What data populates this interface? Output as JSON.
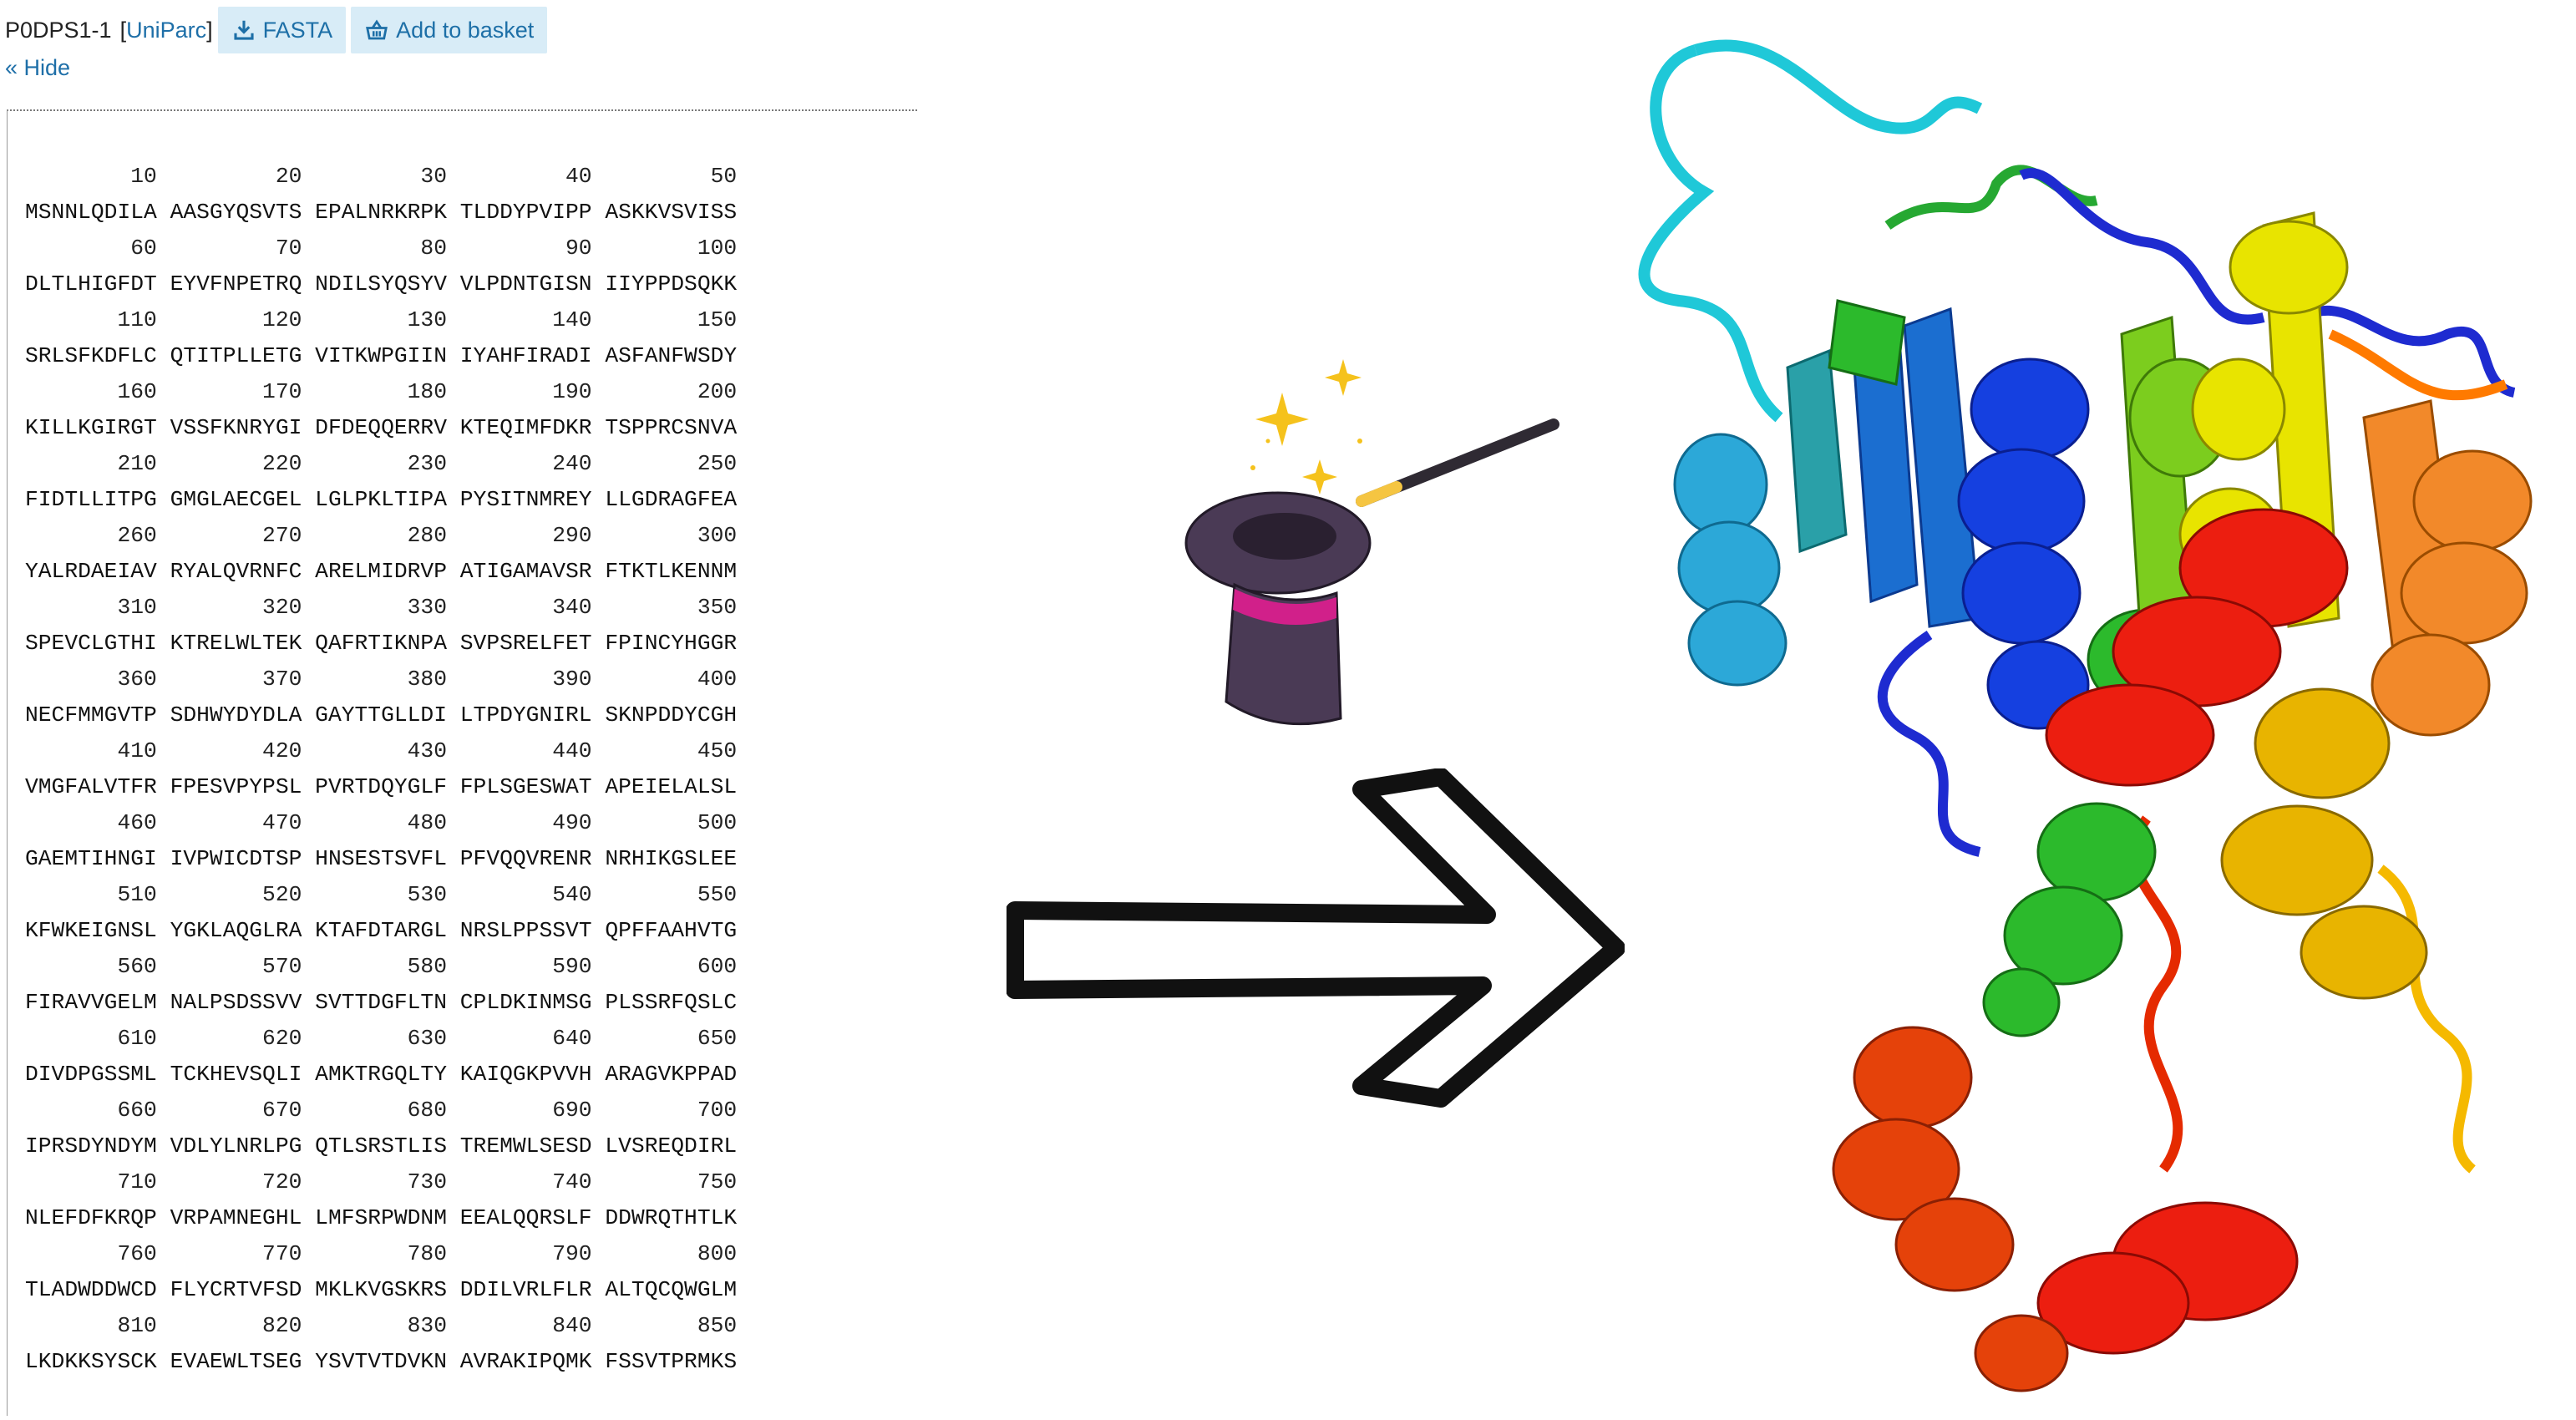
{
  "header": {
    "accession": "P0DPS1-1",
    "uniparc_label": "UniParc",
    "fasta_label": "FASTA",
    "basket_label": "Add to basket",
    "hide_label": "« Hide"
  },
  "sequence": {
    "rows": [
      {
        "nums": "        10         20         30         40         50",
        "res": "MSNNLQDILA AASGYQSVTS EPALNRKRPK TLDDYPVIPP ASKKVSVISS"
      },
      {
        "nums": "        60         70         80         90        100",
        "res": "DLTLHIGFDT EYVFNPETRQ NDILSYQSYV VLPDNTGISN IIYPPDSQKK"
      },
      {
        "nums": "       110        120        130        140        150",
        "res": "SRLSFKDFLC QTITPLLETG VITKWPGIIN IYAHFIRADI ASFANFWSDY"
      },
      {
        "nums": "       160        170        180        190        200",
        "res": "KILLKGIRGT VSSFKNRYGI DFDEQQERRV KTEQIMFDKR TSPPRCSNVA"
      },
      {
        "nums": "       210        220        230        240        250",
        "res": "FIDTLLITPG GMGLAECGEL LGLPKLTIPA PYSITNMREY LLGDRAGFEA"
      },
      {
        "nums": "       260        270        280        290        300",
        "res": "YALRDAEIAV RYALQVRNFC ARELMIDRVP ATIGAMAVSR FTKTLKENNM"
      },
      {
        "nums": "       310        320        330        340        350",
        "res": "SPEVCLGTHI KTRELWLTEK QAFRTIKNPA SVPSRELFET FPINCYHGGR"
      },
      {
        "nums": "       360        370        380        390        400",
        "res": "NECFMMGVTP SDHWYDYDLA GAYTTGLLDI LTPDYGNIRL SKNPDDYCGH"
      },
      {
        "nums": "       410        420        430        440        450",
        "res": "VMGFALVTFR FPESVPYPSL PVRTDQYGLF FPLSGESWAT APEIELALSL"
      },
      {
        "nums": "       460        470        480        490        500",
        "res": "GAEMTIHNGI IVPWICDTSP HNSESTSVFL PFVQQVRENR NRHIKGSLEE"
      },
      {
        "nums": "       510        520        530        540        550",
        "res": "KFWKEIGNSL YGKLAQGLRA KTAFDTARGL NRSLPPSSVT QPFFAAHVTG"
      },
      {
        "nums": "       560        570        580        590        600",
        "res": "FIRAVVGELM NALPSDSSVV SVTTDGFLTN CPLDKINMSG PLSSRFQSLC"
      },
      {
        "nums": "       610        620        630        640        650",
        "res": "DIVDPGSSML TCKHEVSQLI AMKTRGQLTY KAIQGKPVVH ARAGVKPPAD"
      },
      {
        "nums": "       660        670        680        690        700",
        "res": "IPRSDYNDYM VDLYLNRLPG QTLSRSTLIS TREMWLSESD LVSREQDIRL"
      },
      {
        "nums": "       710        720        730        740        750",
        "res": "NLEFDFKRQP VRPAMNEGHL LMFSRPWDNM EEALQQRSLF DDWRQTHTLK"
      },
      {
        "nums": "       760        770        780        790        800",
        "res": "TLADWDDWCD FLYCRTVFSD MKLKVGSKRS DDILVRLFLR ALTQCQWGLM"
      },
      {
        "nums": "       810        820        830        840        850",
        "res": "LKDKKSYSCK EVAEWLTSEG YSVTVTDVKN AVRAKIPQMK FSSVTPRMKS"
      }
    ]
  },
  "colors": {
    "link": "#1e6fa8",
    "button_bg": "#d8ecf7",
    "hat": "#4a3a55",
    "hat_band": "#d1208a",
    "wand_tip": "#f5c542",
    "spark": "#f5c21c"
  },
  "icons": [
    "download-icon",
    "basket-icon",
    "magic-hat-icon",
    "magic-wand-icon",
    "sparkle-icon",
    "right-arrow-icon"
  ]
}
